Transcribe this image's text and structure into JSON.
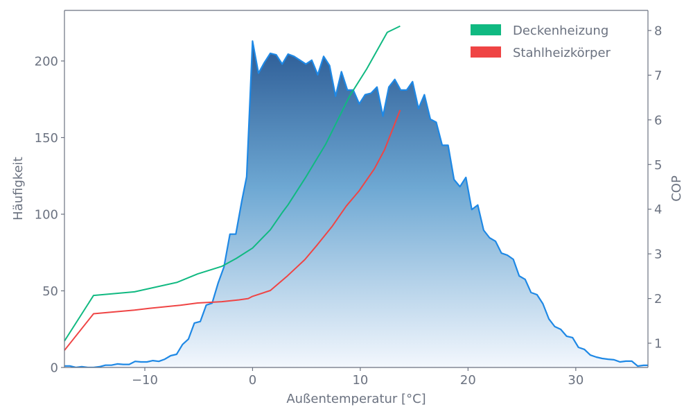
{
  "chart_data": {
    "type": "area",
    "title": "",
    "xlabel": "Außentemperatur [°C]",
    "ylabel": "Häufigkeit",
    "y2label": "COP",
    "xlim": [
      -17.46,
      36.7
    ],
    "ylim": [
      0,
      233
    ],
    "y2lim": [
      0.457,
      8.45
    ],
    "xticks": [
      -10,
      0,
      10,
      20,
      30
    ],
    "xtick_labels": [
      "−10",
      "0",
      "10",
      "20",
      "30"
    ],
    "yticks": [
      0,
      50,
      100,
      150,
      200
    ],
    "ytick_labels": [
      "0",
      "50",
      "100",
      "150",
      "200"
    ],
    "y2ticks": [
      1,
      2,
      3,
      4,
      5,
      6,
      7,
      8
    ],
    "y2tick_labels": [
      "1",
      "2",
      "3",
      "4",
      "5",
      "6",
      "7",
      "8"
    ],
    "grid": false,
    "legend_position": "top-right",
    "histogram": {
      "name": "Häufigkeit",
      "color": "#1e88e5",
      "gradient_top": "#2b5a94",
      "gradient_bottom": "#f3f7fd",
      "x": [
        -17.46,
        -16.95,
        -16.4,
        -15.85,
        -15.3,
        -14.75,
        -14.2,
        -13.65,
        -13.1,
        -12.55,
        -12.0,
        -11.45,
        -10.9,
        -10.35,
        -9.8,
        -9.25,
        -8.7,
        -8.15,
        -7.6,
        -7.05,
        -6.5,
        -5.95,
        -5.4,
        -4.85,
        -4.3,
        -3.75,
        -3.2,
        -2.65,
        -2.1,
        -1.55,
        -1.0,
        -0.55,
        0.0,
        0.55,
        1.1,
        1.65,
        2.2,
        2.75,
        3.3,
        3.85,
        4.4,
        4.95,
        5.5,
        6.05,
        6.6,
        7.15,
        7.7,
        8.25,
        8.8,
        9.35,
        9.9,
        10.45,
        11.0,
        11.55,
        12.1,
        12.65,
        13.2,
        13.75,
        14.3,
        14.85,
        15.4,
        15.95,
        16.5,
        17.05,
        17.6,
        18.15,
        18.7,
        19.25,
        19.8,
        20.35,
        20.9,
        21.45,
        22.0,
        22.55,
        23.1,
        23.65,
        24.2,
        24.75,
        25.3,
        25.85,
        26.4,
        26.95,
        27.5,
        28.05,
        28.6,
        29.15,
        29.7,
        30.25,
        30.8,
        31.35,
        31.9,
        32.45,
        33.0,
        33.55,
        34.1,
        34.65,
        35.2,
        35.75,
        36.3,
        36.7
      ],
      "values": [
        1,
        1,
        0,
        0.5,
        0,
        0,
        0.5,
        1.5,
        1.5,
        2.3,
        2,
        2,
        4,
        3.6,
        3.6,
        4.5,
        4,
        5.4,
        7.7,
        8.6,
        15,
        18.5,
        29,
        30,
        40.7,
        42,
        55,
        65.6,
        87,
        87,
        108.6,
        124.4,
        213,
        192,
        199,
        205,
        204,
        198,
        204.5,
        203,
        200.5,
        198,
        200.5,
        191,
        203,
        197,
        177,
        193,
        181,
        181,
        172,
        178,
        179,
        183,
        164,
        183,
        188,
        181,
        181,
        186.5,
        169,
        178,
        162,
        160,
        145,
        145,
        122.6,
        118,
        124,
        103,
        106,
        89.6,
        84.6,
        82.4,
        74.6,
        73.3,
        70.6,
        59.7,
        57.5,
        48.9,
        47.5,
        41.6,
        31.7,
        26.7,
        24.9,
        20.4,
        19.5,
        13.1,
        11.8,
        8.1,
        6.8,
        5.9,
        5.4,
        5,
        3.6,
        4.1,
        4.1,
        0.9,
        1.4,
        1.4
      ]
    },
    "series": [
      {
        "name": "Deckenheizung",
        "axis": "right",
        "color": "#10b981",
        "x": [
          -17.46,
          -14.76,
          -10.96,
          -7.04,
          -5.1,
          -2.86,
          -1.5,
          0.0,
          1.65,
          2.8,
          3.3,
          4.9,
          6.8,
          9.0,
          10.6,
          12.5,
          13.7
        ],
        "values": [
          1.05,
          2.07,
          2.15,
          2.36,
          2.55,
          2.72,
          2.9,
          3.13,
          3.54,
          3.94,
          4.1,
          4.7,
          5.46,
          6.53,
          7.14,
          7.96,
          8.1
        ]
      },
      {
        "name": "Stahlheizkörper",
        "axis": "right",
        "color": "#ef4444",
        "x": [
          -17.46,
          -14.76,
          -10.96,
          -9.6,
          -6.7,
          -5.1,
          -2.86,
          -1.25,
          -0.4,
          0.0,
          1.65,
          3.25,
          4.85,
          6.0,
          7.4,
          8.7,
          9.86,
          11.3,
          12.25,
          13.7
        ],
        "values": [
          0.84,
          1.66,
          1.74,
          1.78,
          1.85,
          1.9,
          1.93,
          1.97,
          2.0,
          2.05,
          2.18,
          2.51,
          2.87,
          3.2,
          3.62,
          4.07,
          4.4,
          4.9,
          5.33,
          6.22
        ]
      }
    ],
    "legend": [
      {
        "label": "Deckenheizung",
        "color": "#10b981"
      },
      {
        "label": "Stahlheizkörper",
        "color": "#ef4444"
      }
    ]
  }
}
